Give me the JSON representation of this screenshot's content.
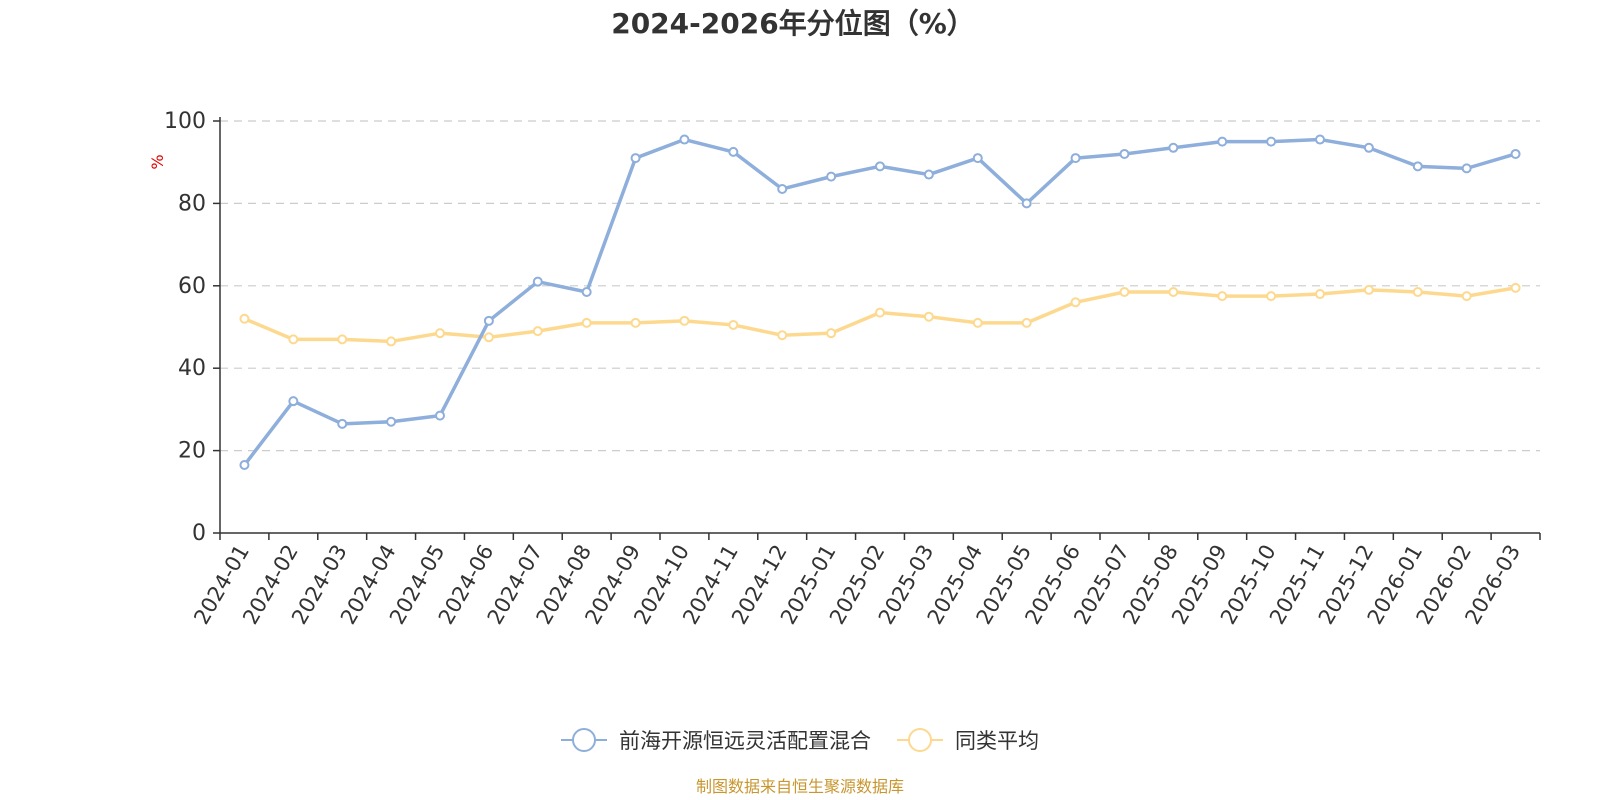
{
  "chart_data": {
    "type": "line",
    "title": "2024-2026年分位图（%）",
    "ylabel": "%",
    "xlabel": "",
    "ylim": [
      0,
      100
    ],
    "yticks": [
      0,
      20,
      40,
      60,
      80,
      100
    ],
    "grid": true,
    "legend_position": "bottom-center",
    "categories": [
      "2024-01",
      "2024-02",
      "2024-03",
      "2024-04",
      "2024-05",
      "2024-06",
      "2024-07",
      "2024-08",
      "2024-09",
      "2024-10",
      "2024-11",
      "2024-12",
      "2025-01",
      "2025-02",
      "2025-03",
      "2025-04",
      "2025-05",
      "2025-06",
      "2025-07",
      "2025-08",
      "2025-09",
      "2025-10",
      "2025-11",
      "2025-12",
      "2026-01",
      "2026-02",
      "2026-03"
    ],
    "series": [
      {
        "name": "前海开源恒远灵活配置混合",
        "color": "#8eaedb",
        "values": [
          16.5,
          32,
          26.5,
          27,
          28.5,
          51.5,
          61,
          58.5,
          91,
          95.5,
          92.5,
          83.5,
          86.5,
          89,
          87,
          91,
          80,
          91,
          92,
          93.5,
          95,
          95,
          95.5,
          93.5,
          89,
          88.5,
          92
        ]
      },
      {
        "name": "同类平均",
        "color": "#fdd98f",
        "values": [
          52,
          47,
          47,
          46.5,
          48.5,
          47.5,
          49,
          51,
          51,
          51.5,
          50.5,
          48,
          48.5,
          53.5,
          52.5,
          51,
          51,
          56,
          58.5,
          58.5,
          57.5,
          57.5,
          58,
          59,
          58.5,
          57.5,
          59.5
        ]
      }
    ]
  },
  "footer": {
    "source": "制图数据来自恒生聚源数据库"
  }
}
